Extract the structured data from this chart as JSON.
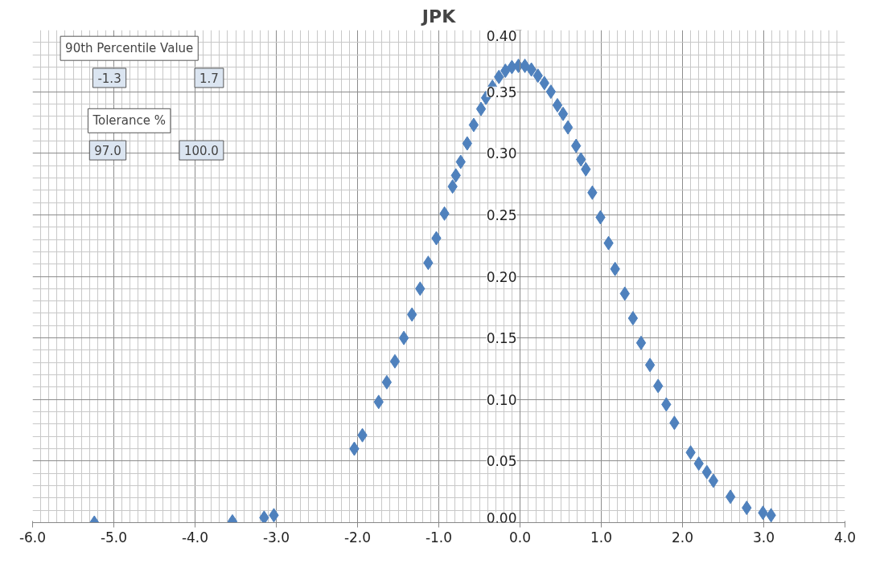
{
  "chart_data": {
    "type": "scatter",
    "title": "JPK",
    "annotations": [
      "90th Percentile Value",
      "-1.3",
      "1.7",
      "Tolerance %",
      "97.0",
      "100.0"
    ],
    "x": [
      -5.24,
      -3.54,
      -3.15,
      -3.03,
      -2.04,
      -1.94,
      -1.74,
      -1.64,
      -1.54,
      -1.43,
      -1.33,
      -1.23,
      -1.13,
      -1.03,
      -0.93,
      -0.83,
      -0.79,
      -0.73,
      -0.65,
      -0.57,
      -0.48,
      -0.42,
      -0.34,
      -0.26,
      -0.18,
      -0.1,
      -0.02,
      0.06,
      0.14,
      0.22,
      0.3,
      0.38,
      0.46,
      0.53,
      0.59,
      0.69,
      0.75,
      0.81,
      0.89,
      0.99,
      1.09,
      1.17,
      1.29,
      1.39,
      1.49,
      1.6,
      1.7,
      1.8,
      1.9,
      2.1,
      2.2,
      2.3,
      2.38,
      2.59,
      2.79,
      2.99,
      3.09
    ],
    "series": [
      {
        "color": "#4f81bd",
        "values": [
          0.0,
          0.001,
          0.004,
          0.006,
          0.06,
          0.071,
          0.098,
          0.114,
          0.131,
          0.15,
          0.169,
          0.19,
          0.211,
          0.231,
          0.251,
          0.273,
          0.282,
          0.293,
          0.308,
          0.323,
          0.336,
          0.345,
          0.354,
          0.362,
          0.367,
          0.37,
          0.371,
          0.371,
          0.368,
          0.363,
          0.357,
          0.35,
          0.339,
          0.332,
          0.321,
          0.306,
          0.295,
          0.287,
          0.268,
          0.248,
          0.227,
          0.206,
          0.186,
          0.166,
          0.146,
          0.128,
          0.111,
          0.096,
          0.081,
          0.057,
          0.048,
          0.041,
          0.034,
          0.021,
          0.012,
          0.008,
          0.006
        ]
      }
    ],
    "xlim": [
      -6,
      4
    ],
    "xticks": [
      {
        "value": -6,
        "label": "-6.0"
      },
      {
        "value": -5,
        "label": "-5.0"
      },
      {
        "value": -4,
        "label": "-4.0"
      },
      {
        "value": -3,
        "label": "-3.0"
      },
      {
        "value": -2,
        "label": "-2.0"
      },
      {
        "value": -1,
        "label": "-1.0"
      },
      {
        "value": 0,
        "label": "0.0"
      },
      {
        "value": 1,
        "label": "1.0"
      },
      {
        "value": 2,
        "label": "2.0"
      },
      {
        "value": 3,
        "label": "3.0"
      },
      {
        "value": 4,
        "label": "4.0"
      }
    ],
    "ylim": [
      0,
      0.4
    ],
    "yticks": [
      {
        "value": 0,
        "label": "0.00"
      },
      {
        "value": 0.05,
        "label": "0.05"
      },
      {
        "value": 0.1,
        "label": "0.10"
      },
      {
        "value": 0.15,
        "label": "0.15"
      },
      {
        "value": 0.2,
        "label": "0.20"
      },
      {
        "value": 0.25,
        "label": "0.25"
      },
      {
        "value": 0.3,
        "label": "0.30"
      },
      {
        "value": 0.35,
        "label": "0.35"
      },
      {
        "value": 0.4,
        "label": "0.40"
      }
    ],
    "grid": true,
    "legend": false,
    "marker": "diamond"
  }
}
